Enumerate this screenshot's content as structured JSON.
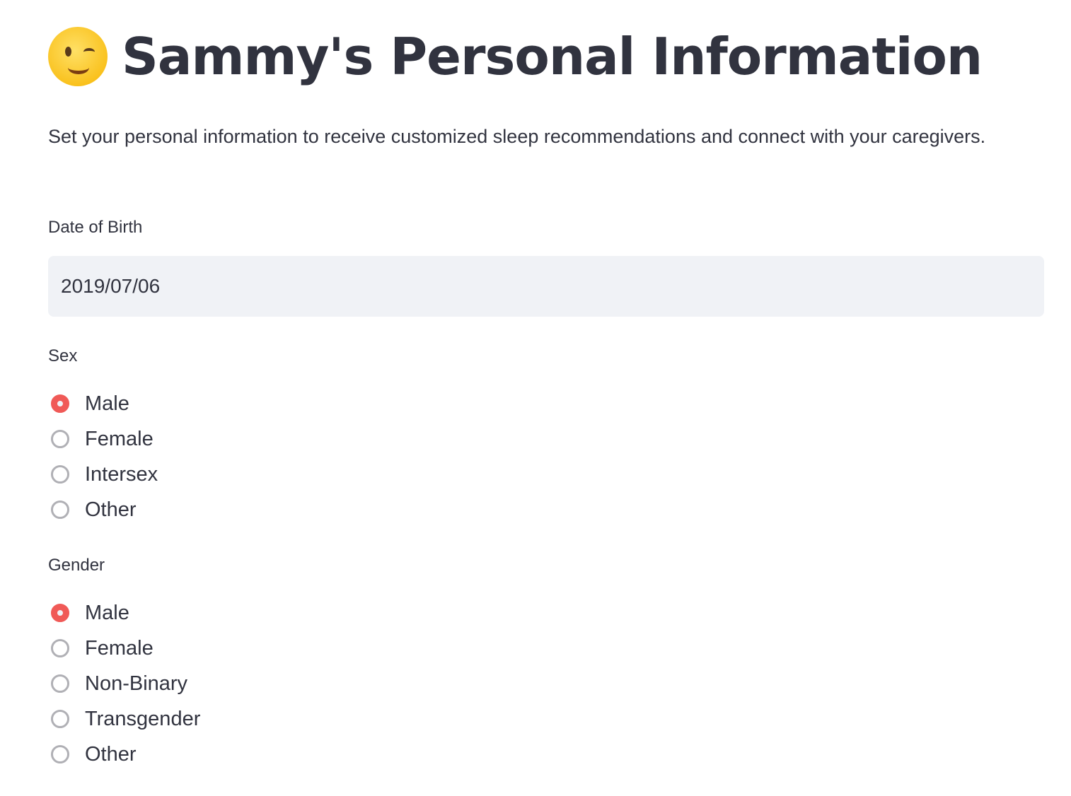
{
  "header": {
    "title": "Sammy's Personal Information",
    "emoji": "winking-face-icon"
  },
  "description": "Set your personal information to receive customized sleep recommendations and connect with your caregivers.",
  "dob": {
    "label": "Date of Birth",
    "value": "2019/07/06"
  },
  "sex": {
    "label": "Sex",
    "selected": "Male",
    "options": [
      "Male",
      "Female",
      "Intersex",
      "Other"
    ]
  },
  "gender": {
    "label": "Gender",
    "selected": "Male",
    "options": [
      "Male",
      "Female",
      "Non-Binary",
      "Transgender",
      "Other"
    ]
  },
  "colors": {
    "accent": "#f05a57",
    "text": "#31333f",
    "input_bg": "#f0f2f6"
  }
}
